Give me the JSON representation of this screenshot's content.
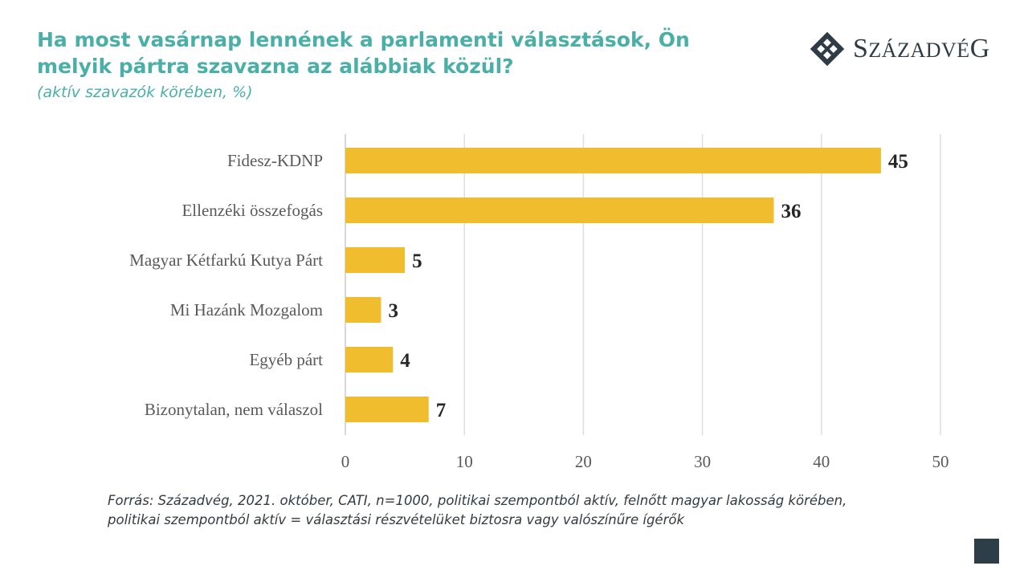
{
  "chart_data": {
    "type": "bar",
    "orientation": "horizontal",
    "title": "Ha most vasárnap lennének a parlamenti választások, Ön melyik pártra szavazna az alábbiak közül?",
    "subtitle": "(aktív szavazók körében, %)",
    "categories": [
      "Fidesz-KDNP",
      "Ellenzéki összefogás",
      "Magyar Kétfarkú Kutya Párt",
      "Mi Hazánk Mozgalom",
      "Egyéb párt",
      "Bizonytalan, nem válaszol"
    ],
    "values": [
      45,
      36,
      5,
      3,
      4,
      7
    ],
    "xlim": [
      0,
      50
    ],
    "xticks": [
      0,
      10,
      20,
      30,
      40,
      50
    ],
    "grid": true,
    "bar_color": "#f0bd2f"
  },
  "logo": {
    "text_first": "S",
    "text_small": "ZÁZADVÉ",
    "text_last": "G"
  },
  "footnote": {
    "line1": "Forrás: Századvég, 2021. október, CATI, n=1000, politikai szempontból aktív, felnőtt magyar lakosság körében,",
    "line2": "politikai szempontból aktív = választási részvételüket biztosra vagy valószínűre ígérők"
  }
}
